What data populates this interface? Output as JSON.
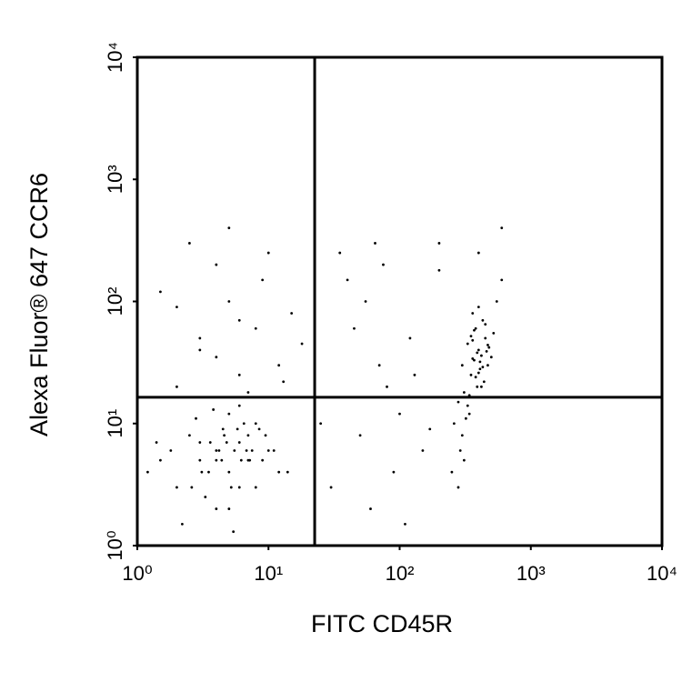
{
  "chart_data": {
    "type": "scatter",
    "x_label": "FITC CD45R",
    "y_label": "Alexa Fluor® 647 CCR6",
    "xlim": [
      1,
      10000
    ],
    "ylim": [
      1,
      10000
    ],
    "log_x": true,
    "log_y": true,
    "xticks": [
      {
        "value": 1,
        "label": "10⁰"
      },
      {
        "value": 10,
        "label": "10¹"
      },
      {
        "value": 100,
        "label": "10²"
      },
      {
        "value": 1000,
        "label": "10³"
      },
      {
        "value": 10000,
        "label": "10⁴"
      }
    ],
    "yticks": [
      {
        "value": 1,
        "label": "10⁰"
      },
      {
        "value": 10,
        "label": "10¹"
      },
      {
        "value": 100,
        "label": "10²"
      },
      {
        "value": 1000,
        "label": "10³"
      },
      {
        "value": 10000,
        "label": "10⁴"
      }
    ],
    "gates": {
      "x": 22.5,
      "y": 16.4
    },
    "series": [
      {
        "color": "#000000",
        "x": [
          3,
          4,
          5,
          6,
          7,
          2.5,
          8,
          4.5,
          5.5,
          3.5,
          6.5,
          9,
          2,
          11,
          4,
          5,
          7,
          3,
          6,
          1.5,
          12,
          4.2,
          5.8,
          2.8,
          7.5,
          3.3,
          6.2,
          4.8,
          1.2,
          9.5,
          5.2,
          3.8,
          6.8,
          2.2,
          4.4,
          8.5,
          1.8,
          14,
          5,
          3.6,
          4.6,
          7.2,
          2.6,
          10,
          6,
          3.1,
          5.4,
          1.4,
          8,
          4,
          300,
          400,
          350,
          450,
          500,
          380,
          420,
          280,
          330,
          470,
          360,
          410,
          390,
          520,
          440,
          310,
          370,
          430,
          480,
          340,
          260,
          550,
          400,
          360,
          420,
          300,
          450,
          380,
          330,
          290,
          410,
          350,
          470,
          390,
          250,
          320,
          600,
          430,
          370,
          280,
          460,
          340,
          400,
          310,
          360,
          2,
          3,
          5,
          8,
          12,
          4,
          6,
          15,
          2.5,
          9,
          3,
          7,
          18,
          1.5,
          10,
          4,
          6,
          13,
          2,
          5,
          30,
          50,
          80,
          120,
          40,
          60,
          100,
          150,
          35,
          70,
          90,
          200,
          45,
          110,
          25,
          55,
          130,
          75,
          170,
          65,
          200,
          400,
          600
        ],
        "y": [
          5,
          6,
          4,
          7,
          5,
          8,
          3,
          9,
          6,
          4,
          10,
          5,
          3,
          6,
          2,
          12,
          8,
          7,
          3,
          5,
          4,
          6,
          9,
          11,
          6,
          2.5,
          5,
          7,
          4,
          8,
          3,
          13,
          6,
          1.5,
          5,
          9,
          6,
          4,
          2,
          7,
          8,
          5,
          3,
          6,
          14,
          4,
          1.3,
          7,
          10,
          5,
          30,
          40,
          25,
          50,
          35,
          60,
          20,
          15,
          45,
          30,
          80,
          28,
          38,
          55,
          22,
          18,
          33,
          70,
          42,
          12,
          10,
          100,
          26,
          48,
          36,
          8,
          65,
          24,
          14,
          6,
          32,
          52,
          44,
          20,
          4,
          11,
          150,
          29,
          58,
          3,
          39,
          17,
          90,
          5,
          34,
          20,
          40,
          100,
          60,
          30,
          200,
          25,
          80,
          300,
          150,
          50,
          18,
          45,
          120,
          250,
          35,
          70,
          22,
          90,
          400,
          3,
          8,
          20,
          50,
          150,
          2,
          12,
          6,
          250,
          30,
          4,
          180,
          60,
          1.5,
          10,
          100,
          25,
          200,
          9,
          300,
          300,
          250,
          400
        ]
      }
    ]
  }
}
